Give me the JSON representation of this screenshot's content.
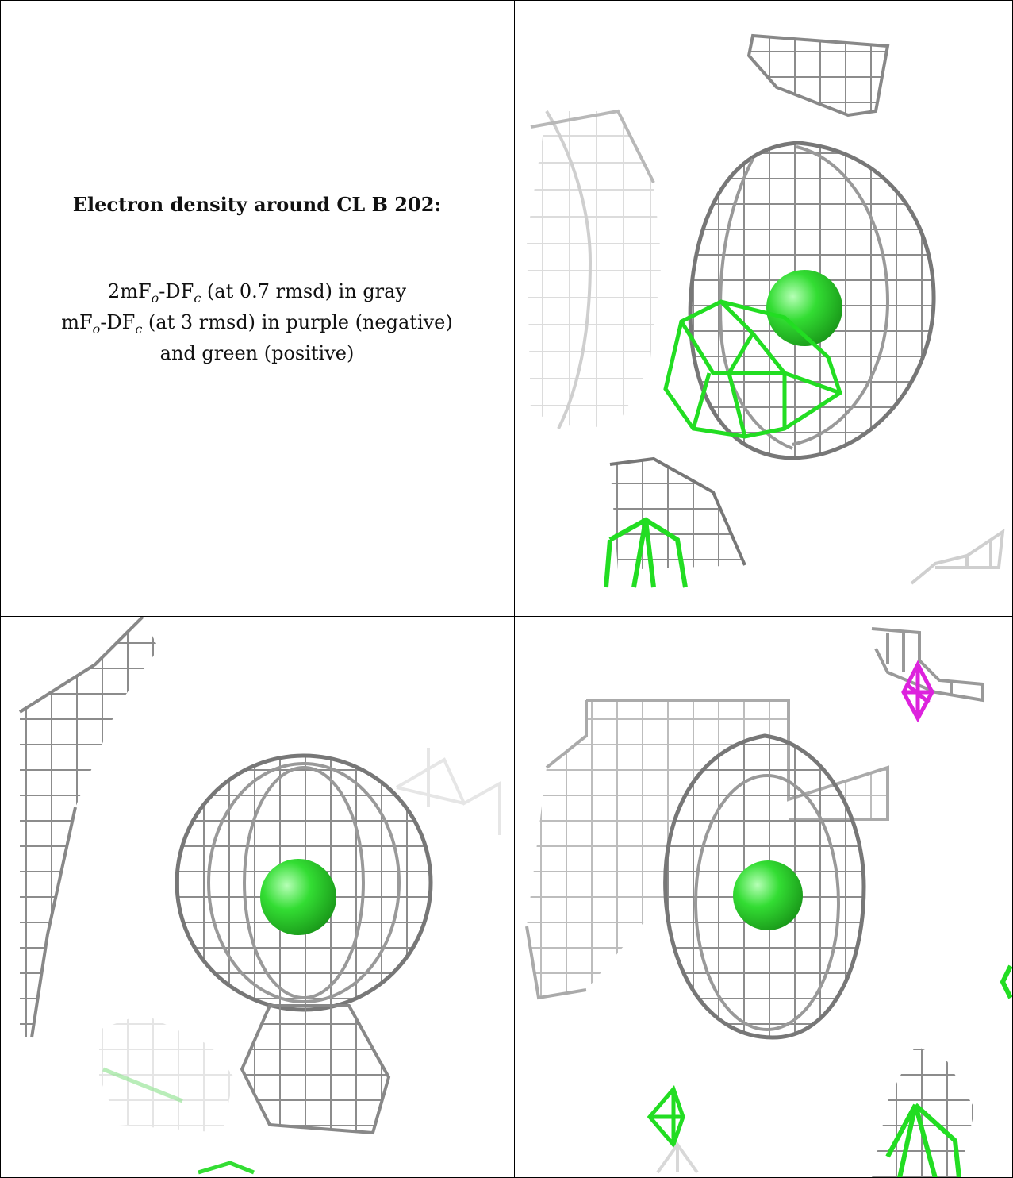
{
  "caption": {
    "title": "Electron density around CL B 202:",
    "line1": {
      "pre": "2mF",
      "sub1": "o",
      "mid": "-DF",
      "sub2": "c",
      "post": " (at 0.7 rmsd) in gray"
    },
    "line2": {
      "pre": "mF",
      "sub1": "o",
      "mid": "-DF",
      "sub2": "c",
      "post": " (at 3 rmsd) in purple (negative)"
    },
    "line3": "and green (positive)"
  },
  "colors": {
    "mesh_gray": "#9a9a9a",
    "mesh_dark": "#555555",
    "positive_green": "#22dd22",
    "negative_purple": "#dd22dd",
    "atom_green": "#33dd33",
    "border": "#000000"
  },
  "views": [
    {
      "name": "view-top-right"
    },
    {
      "name": "view-bottom-left"
    },
    {
      "name": "view-bottom-right"
    }
  ]
}
